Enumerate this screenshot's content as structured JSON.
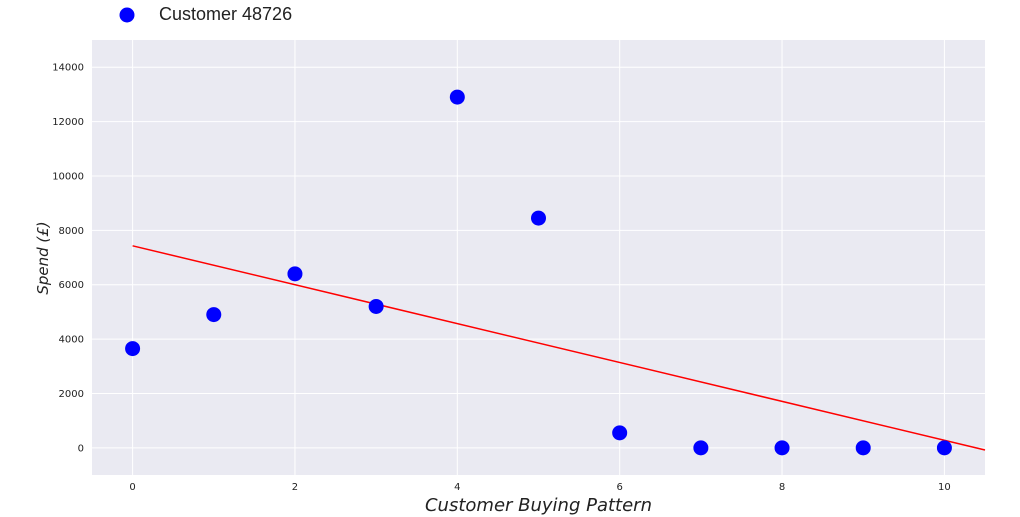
{
  "chart_data": {
    "type": "scatter",
    "title": "",
    "xlabel": "Customer Buying Pattern",
    "ylabel": "Spend (£)",
    "xlim": [
      -0.5,
      10.5
    ],
    "ylim": [
      -1000,
      15000
    ],
    "xticks": [
      0,
      2,
      4,
      6,
      8,
      10
    ],
    "yticks": [
      0,
      2000,
      4000,
      6000,
      8000,
      10000,
      12000,
      14000
    ],
    "grid": true,
    "legend_position": "top-left, outside plot",
    "series": [
      {
        "name": "Customer 48726",
        "kind": "scatter",
        "color": "#0000ff",
        "x": [
          0,
          1,
          2,
          3,
          4,
          5,
          6,
          7,
          8,
          9,
          10
        ],
        "y": [
          3650,
          4900,
          6400,
          5200,
          12900,
          8450,
          550,
          0,
          0,
          0,
          0
        ]
      },
      {
        "kind": "trend-line",
        "color": "#ff0000",
        "x": [
          0,
          10.5
        ],
        "y": [
          7430,
          -80
        ]
      }
    ]
  }
}
